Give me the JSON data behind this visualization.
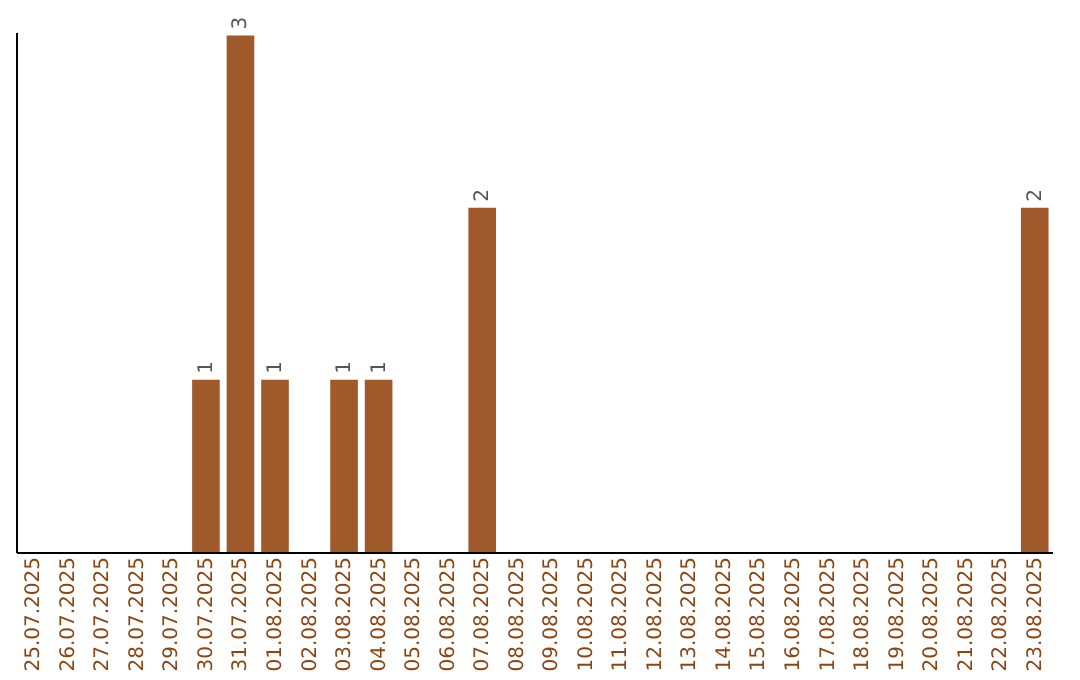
{
  "chart_data": {
    "type": "bar",
    "categories": [
      "25.07.2025",
      "26.07.2025",
      "27.07.2025",
      "28.07.2025",
      "29.07.2025",
      "30.07.2025",
      "31.07.2025",
      "01.08.2025",
      "02.08.2025",
      "03.08.2025",
      "04.08.2025",
      "05.08.2025",
      "06.08.2025",
      "07.08.2025",
      "08.08.2025",
      "09.08.2025",
      "10.08.2025",
      "11.08.2025",
      "12.08.2025",
      "13.08.2025",
      "14.08.2025",
      "15.08.2025",
      "16.08.2025",
      "17.08.2025",
      "18.08.2025",
      "19.08.2025",
      "20.08.2025",
      "21.08.2025",
      "22.08.2025",
      "23.08.2025"
    ],
    "values": [
      0,
      0,
      0,
      0,
      0,
      1,
      3,
      1,
      0,
      1,
      1,
      0,
      0,
      2,
      0,
      0,
      0,
      0,
      0,
      0,
      0,
      0,
      0,
      0,
      0,
      0,
      0,
      0,
      0,
      2
    ],
    "value_labels": [
      null,
      null,
      null,
      null,
      null,
      "1",
      "3",
      "1",
      null,
      "1",
      "1",
      null,
      null,
      "2",
      null,
      null,
      null,
      null,
      null,
      null,
      null,
      null,
      null,
      null,
      null,
      null,
      null,
      null,
      null,
      "2"
    ],
    "color": "#a0592a",
    "ylim": [
      0,
      3.02
    ],
    "tick_labels": "x",
    "grid": false
  }
}
